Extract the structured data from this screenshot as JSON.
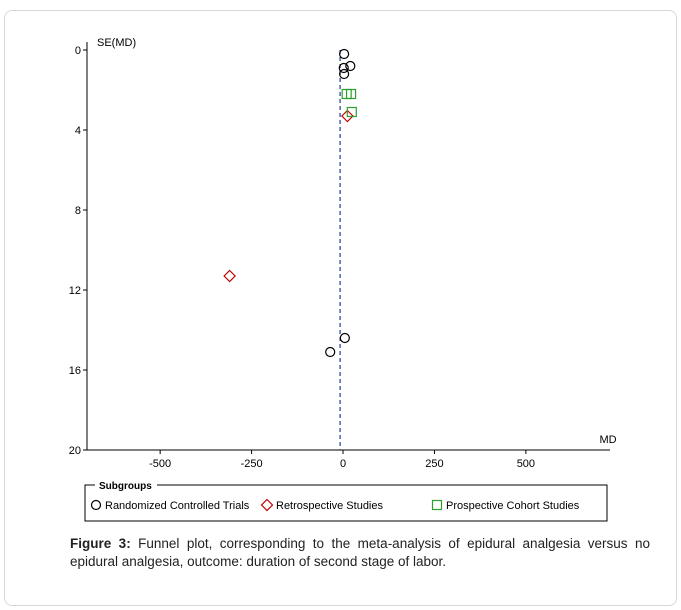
{
  "chart_data": {
    "type": "scatter",
    "title": "",
    "xlabel": "MD",
    "ylabel": "SE(MD)",
    "xlim": [
      -700,
      730
    ],
    "ylim": [
      0,
      20
    ],
    "y_reversed": true,
    "xticks": [
      -500,
      -250,
      0,
      250,
      500
    ],
    "yticks": [
      0,
      4,
      8,
      12,
      16,
      20
    ],
    "reference_line_md": -8,
    "grid": false,
    "legend_placement": "bottom",
    "legend_title": "Subgroups",
    "series": [
      {
        "name": "Randomized Controlled Trials",
        "marker": "circle",
        "color": "#000000",
        "points": [
          {
            "x": 3,
            "y": 0.2
          },
          {
            "x": 2,
            "y": 0.9
          },
          {
            "x": 20,
            "y": 0.8
          },
          {
            "x": 3,
            "y": 1.2
          },
          {
            "x": 5,
            "y": 14.4
          },
          {
            "x": -35,
            "y": 15.1
          }
        ]
      },
      {
        "name": "Retrospective Studies",
        "marker": "diamond",
        "color": "#c00000",
        "points": [
          {
            "x": 12,
            "y": 3.3
          },
          {
            "x": -310,
            "y": 11.3
          }
        ]
      },
      {
        "name": "Prospective Cohort Studies",
        "marker": "square",
        "color": "#2ca02c",
        "points": [
          {
            "x": 10,
            "y": 2.2
          },
          {
            "x": 22,
            "y": 2.2
          },
          {
            "x": 24,
            "y": 3.1
          }
        ]
      }
    ]
  },
  "caption": {
    "label": "Figure 3:",
    "text": " Funnel plot, corresponding to the meta-analysis of epidural analgesia versus no epidural analgesia, outcome: duration of second stage of labor."
  }
}
